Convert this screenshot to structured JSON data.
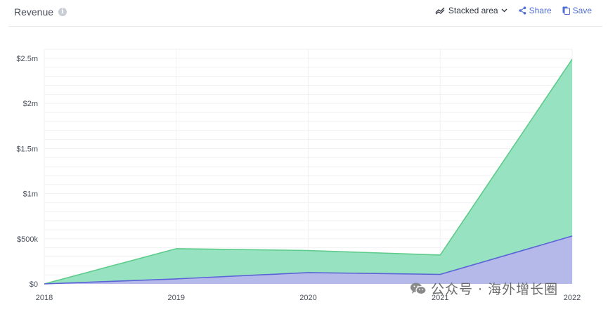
{
  "header": {
    "title": "Revenue",
    "info_icon": "i",
    "chart_type_label": "Stacked area",
    "share_label": "Share",
    "save_label": "Save"
  },
  "watermark": {
    "text": "公众号 · 海外增长圈",
    "icon": "wechat-icon"
  },
  "colors": {
    "series_top_fill": "#97e2c1",
    "series_top_line": "#5dcb8a",
    "series_bottom_fill": "#b4b9ea",
    "series_bottom_line": "#5b63d6",
    "grid": "#f0f1f3",
    "axis_text": "#4a4f5c",
    "accent": "#4f6dd6"
  },
  "chart_data": {
    "type": "area",
    "stacked": true,
    "x": [
      "2018",
      "2019",
      "2020",
      "2021",
      "2022"
    ],
    "series": [
      {
        "values": [
          0,
          55000,
          125000,
          105000,
          530000
        ]
      },
      {
        "values": [
          0,
          335000,
          245000,
          215000,
          1960000
        ]
      }
    ],
    "ylim": [
      0,
      2500000
    ],
    "yticks": [
      0,
      500000,
      1000000,
      1500000,
      2000000,
      2500000
    ],
    "ytick_labels": [
      "$0",
      "$500k",
      "$1m",
      "$1.5m",
      "$2m",
      "$2.5m"
    ],
    "grid": true,
    "title": "",
    "xlabel": "",
    "ylabel": ""
  }
}
